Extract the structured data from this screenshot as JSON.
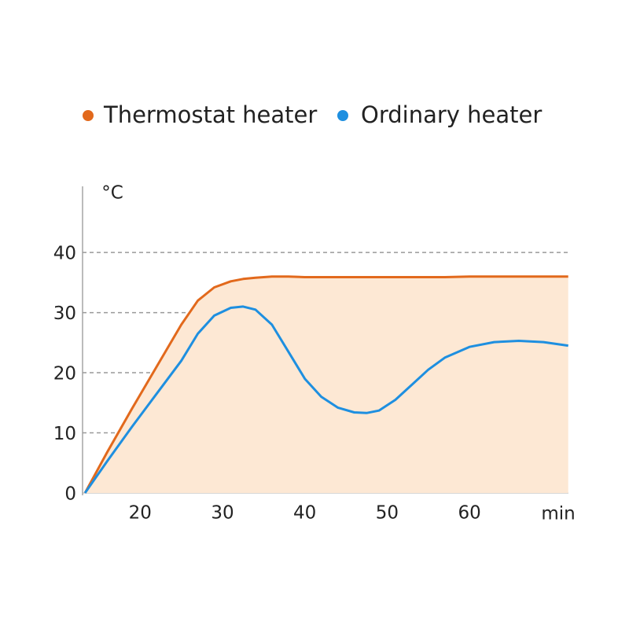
{
  "chart_data": {
    "type": "line",
    "legend": "top",
    "x_label": "min",
    "y_label": "°C",
    "xlim": [
      13,
      72
    ],
    "ylim": [
      0,
      51
    ],
    "xticks": [
      20,
      30,
      40,
      50,
      60
    ],
    "yticks": [
      0,
      10,
      20,
      30,
      40
    ],
    "grid": true,
    "x": [
      13.3,
      16,
      19,
      22,
      25,
      27,
      29,
      31,
      32.5,
      34,
      36,
      38,
      40,
      42,
      44,
      46,
      47.5,
      49,
      51,
      53,
      55,
      57,
      60,
      63,
      66,
      69,
      72
    ],
    "series": [
      {
        "name": "Thermostat heater",
        "color": "#e2691c",
        "fill": "#fde8d4",
        "values": [
          0,
          6.8,
          14,
          21,
          28,
          32,
          34.2,
          35.2,
          35.6,
          35.8,
          36,
          36,
          35.9,
          35.9,
          35.9,
          35.9,
          35.9,
          35.9,
          35.9,
          35.9,
          35.9,
          35.9,
          36,
          36,
          36,
          36,
          36
        ]
      },
      {
        "name": "Ordinary heater",
        "color": "#1e8fe0",
        "values": [
          0,
          5.3,
          11,
          16.5,
          22,
          26.5,
          29.5,
          30.8,
          31,
          30.5,
          28,
          23.5,
          19,
          16,
          14.2,
          13.4,
          13.3,
          13.7,
          15.5,
          18,
          20.5,
          22.5,
          24.3,
          25.1,
          25.3,
          25.1,
          24.5
        ]
      }
    ]
  }
}
